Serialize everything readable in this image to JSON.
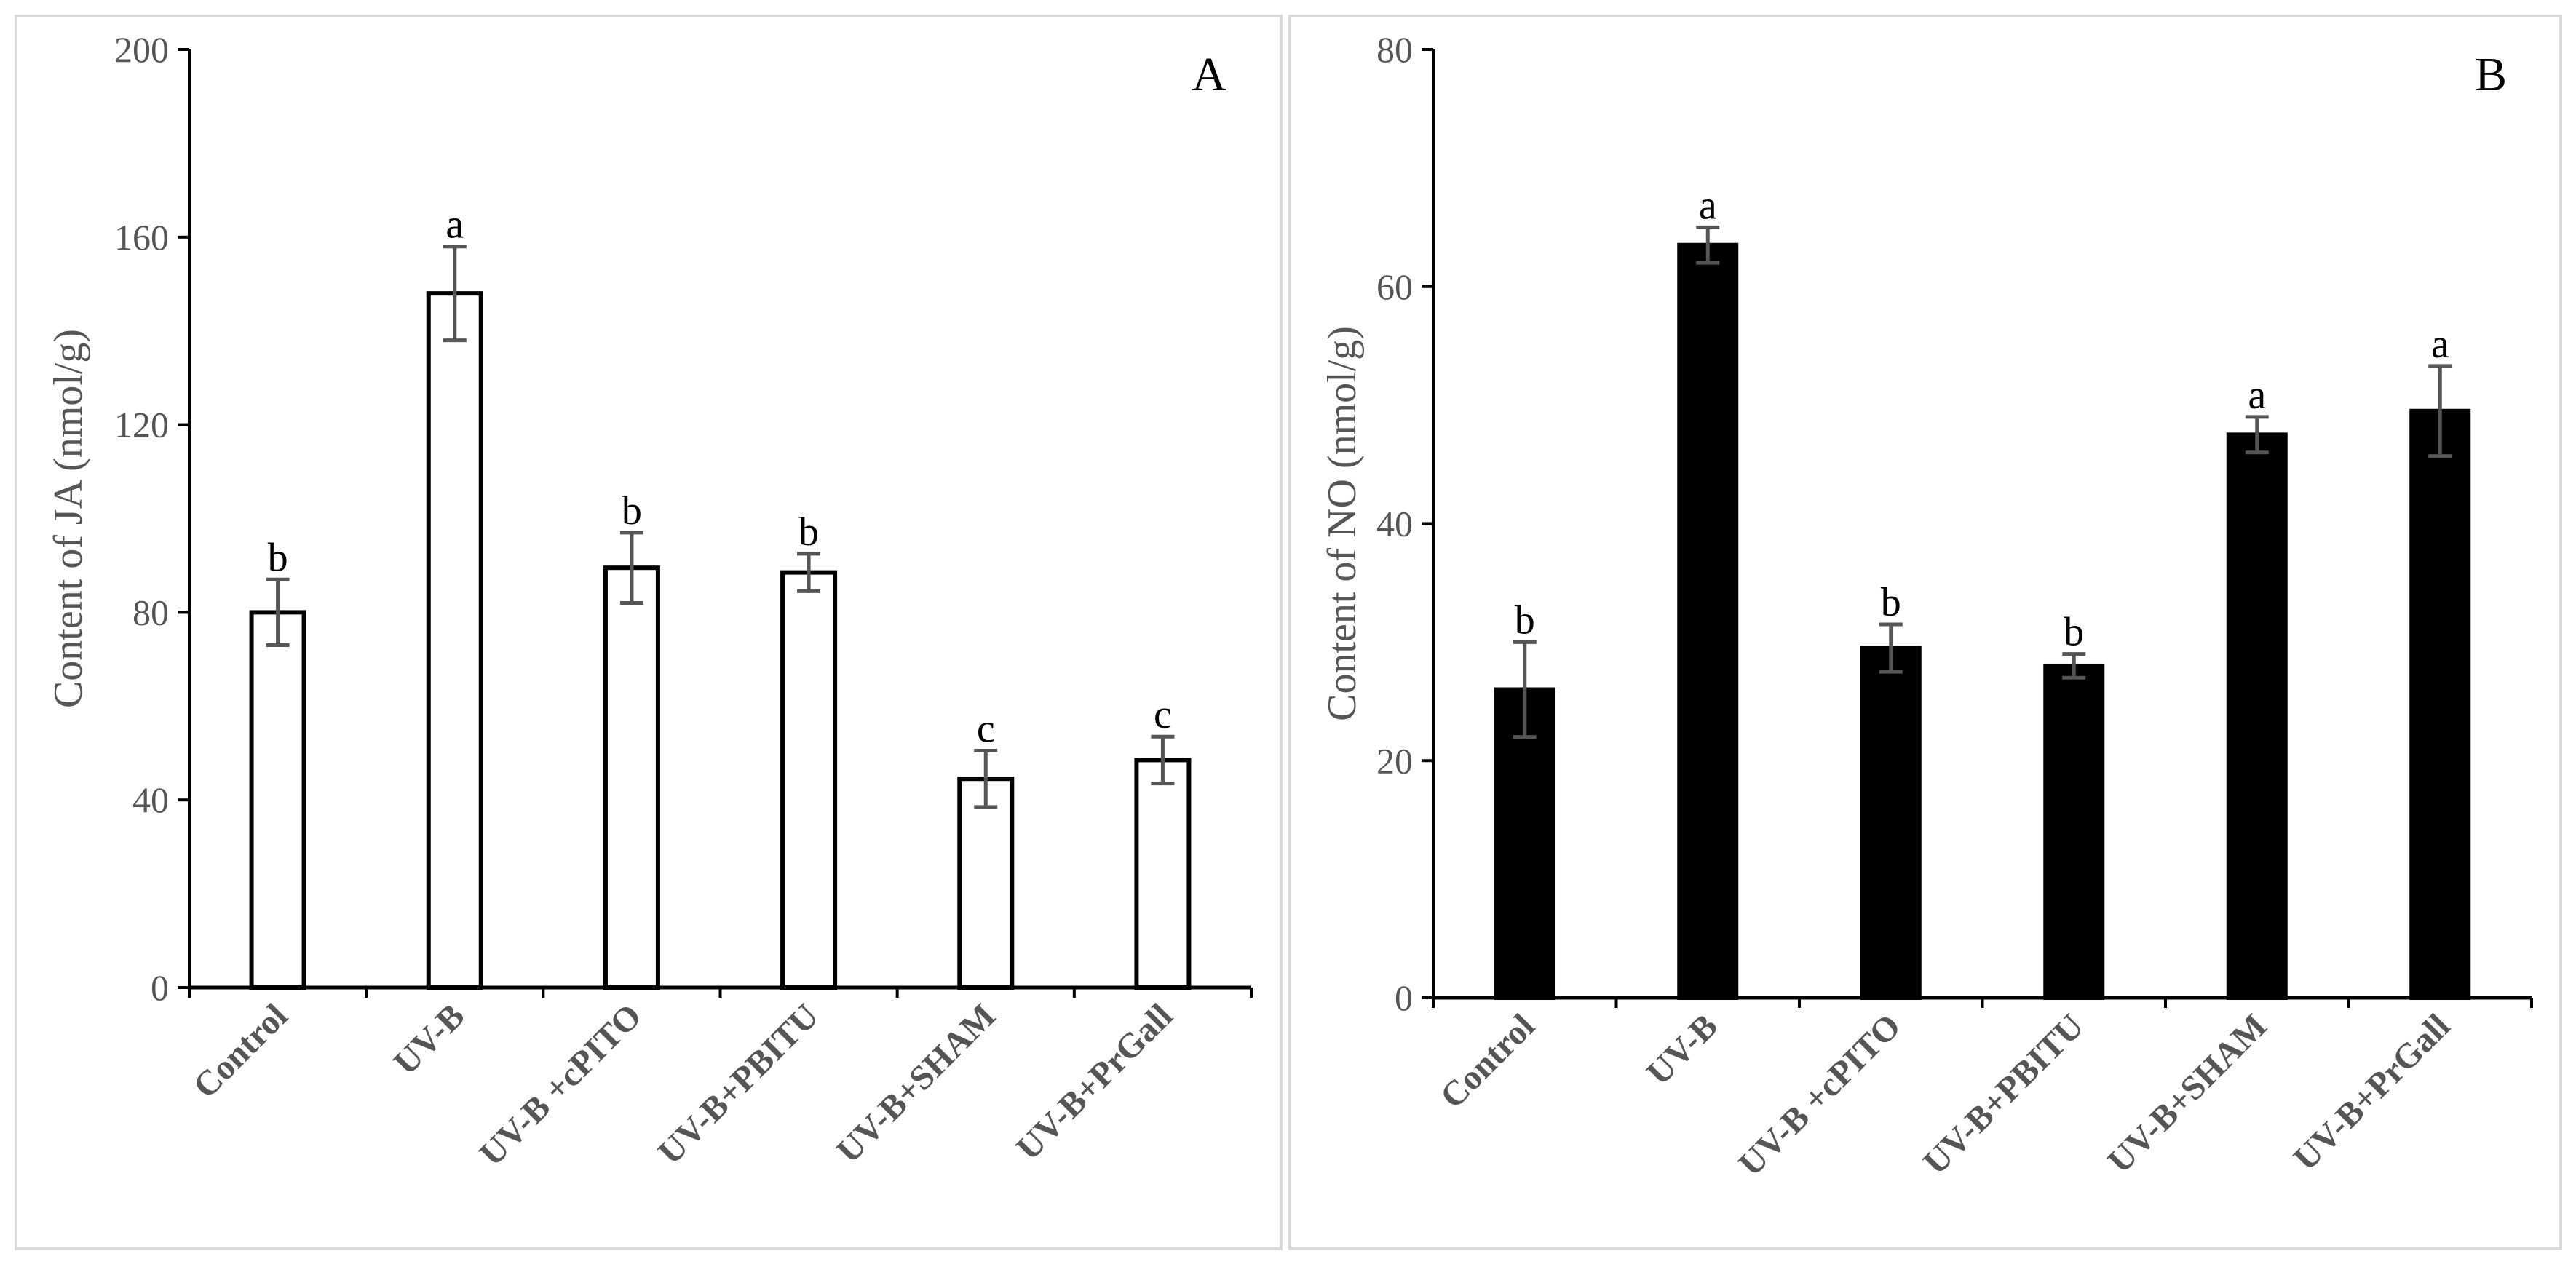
{
  "colors": {
    "axis": "#000000",
    "error_bar": "#555555",
    "panel_border": "#d9d9d9"
  },
  "chart_data": [
    {
      "type": "bar",
      "panel_label": "A",
      "ylabel": "Content of JA (nmol/g)",
      "xlabel": "",
      "ylim": [
        0,
        200
      ],
      "yticks": [
        "0",
        "40",
        "80",
        "120",
        "160",
        "200"
      ],
      "categories": [
        "Control",
        "UV-B",
        "UV-B +cPITO",
        "UV-B+PBITU",
        "UV-B+SHAM",
        "UV-B+PrGall"
      ],
      "values": [
        80,
        148,
        89.5,
        88.5,
        44.5,
        48.5
      ],
      "errors": [
        7,
        10,
        7.5,
        4,
        6,
        5
      ],
      "significance": [
        "b",
        "a",
        "b",
        "b",
        "c",
        "c"
      ],
      "bar_fill": "#ffffff",
      "bar_stroke": "#000000"
    },
    {
      "type": "bar",
      "panel_label": "B",
      "ylabel": "Content of NO (nmol/g)",
      "xlabel": "",
      "ylim": [
        0,
        80
      ],
      "yticks": [
        "0",
        "20",
        "40",
        "60",
        "80"
      ],
      "categories": [
        "Control",
        "UV-B",
        "UV-B +cPITO",
        "UV-B+PBITU",
        "UV-B+SHAM",
        "UV-B+PrGall"
      ],
      "values": [
        26,
        63.5,
        29.5,
        28,
        47.5,
        49.5
      ],
      "errors": [
        4,
        1.5,
        2,
        1,
        1.5,
        3.8
      ],
      "significance": [
        "b",
        "a",
        "b",
        "b",
        "a",
        "a"
      ],
      "bar_fill": "#000000",
      "bar_stroke": "#000000"
    }
  ]
}
